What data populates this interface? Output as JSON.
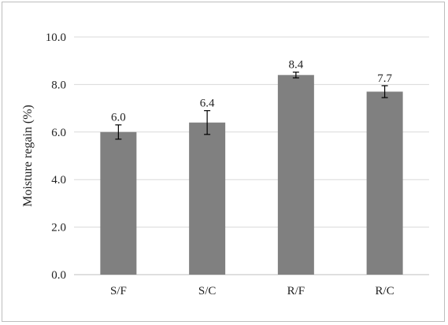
{
  "chart_data": {
    "type": "bar",
    "categories": [
      "S/F",
      "S/C",
      "R/F",
      "R/C"
    ],
    "values": [
      6.0,
      6.4,
      8.4,
      7.7
    ],
    "errors": [
      0.3,
      0.5,
      0.12,
      0.25
    ],
    "data_labels": [
      "6.0",
      "6.4",
      "8.4",
      "7.7"
    ],
    "title": "",
    "xlabel": "",
    "ylabel": "Moisture  regain (%)",
    "ylim": [
      0,
      10
    ],
    "yticks": [
      0,
      2,
      4,
      6,
      8,
      10
    ],
    "ytick_labels": [
      "0.0",
      "2.0",
      "4.0",
      "6.0",
      "8.0",
      "10.0"
    ],
    "grid": true,
    "legend": "none",
    "colors": {
      "bar": "#808080",
      "grid": "#d9d9d9",
      "axis": "#bfbfbf",
      "error": "#000000"
    }
  }
}
